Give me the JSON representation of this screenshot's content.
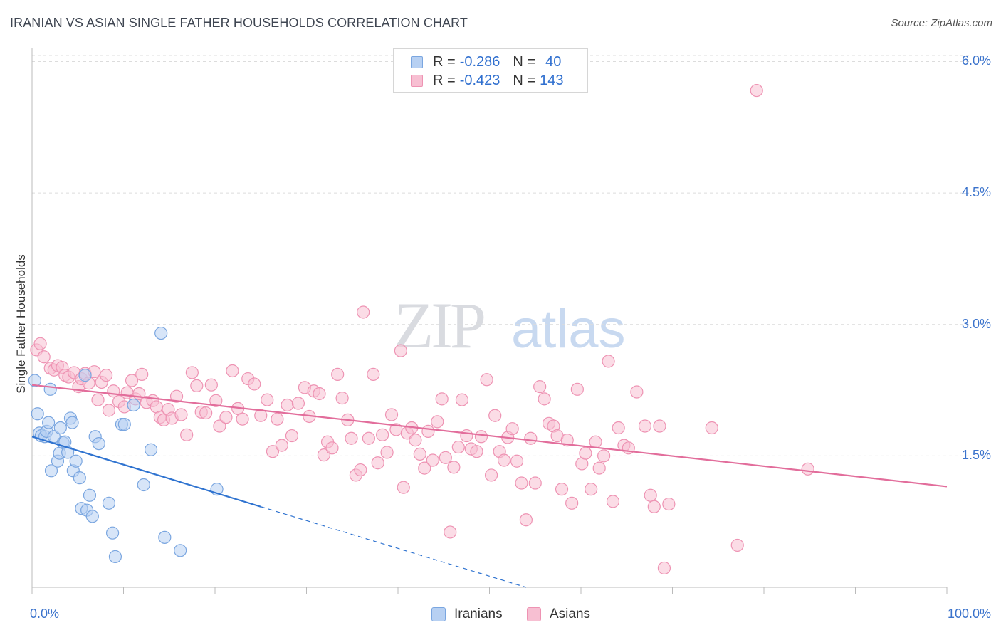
{
  "title": "IRANIAN VS ASIAN SINGLE FATHER HOUSEHOLDS CORRELATION CHART",
  "source": "Source: ZipAtlas.com",
  "watermark": {
    "zip": "ZIP",
    "atlas": "atlas"
  },
  "legend_top": {
    "rows": [
      {
        "r_label": "R = ",
        "r_value": "-0.286",
        "n_label": "N = ",
        "n_value": "40"
      },
      {
        "r_label": "R = ",
        "r_value": "-0.423",
        "n_label": "N = ",
        "n_value": "143"
      }
    ]
  },
  "colors": {
    "iranians_fill": "#b7d0f2",
    "iranians_stroke": "#7aa6e0",
    "iranians_line": "#2f73d0",
    "asians_fill": "#f7bfd2",
    "asians_stroke": "#ee93b3",
    "asians_line": "#e26d9b",
    "tick_label": "#3b73cc",
    "grid": "#dcdcdc"
  },
  "chart_data": {
    "type": "scatter",
    "xlabel": "",
    "ylabel": "Single Father Households",
    "xlim": [
      0,
      100
    ],
    "ylim": [
      0,
      6.15
    ],
    "x_tick_labels": [
      "0.0%",
      "100.0%"
    ],
    "y_ticks": [
      1.5,
      3.0,
      4.5,
      6.0
    ],
    "y_tick_labels": [
      "1.5%",
      "3.0%",
      "4.5%",
      "6.0%"
    ],
    "grid": true,
    "legend_position": "bottom-center",
    "series": [
      {
        "name": "Iranians",
        "trend": {
          "x": [
            0,
            25
          ],
          "y": [
            1.72,
            0.92
          ],
          "dashed_to": [
            54,
            0
          ]
        },
        "points": [
          [
            0.3,
            2.36
          ],
          [
            0.6,
            1.98
          ],
          [
            0.8,
            1.76
          ],
          [
            1.0,
            1.73
          ],
          [
            1.4,
            1.72
          ],
          [
            1.6,
            1.78
          ],
          [
            1.8,
            1.88
          ],
          [
            2.0,
            2.26
          ],
          [
            2.1,
            1.33
          ],
          [
            2.4,
            1.72
          ],
          [
            2.8,
            1.44
          ],
          [
            3.0,
            1.53
          ],
          [
            3.1,
            1.82
          ],
          [
            3.4,
            1.65
          ],
          [
            3.6,
            1.66
          ],
          [
            3.9,
            1.54
          ],
          [
            4.2,
            1.93
          ],
          [
            4.4,
            1.88
          ],
          [
            4.5,
            1.33
          ],
          [
            4.8,
            1.44
          ],
          [
            5.2,
            1.25
          ],
          [
            5.4,
            0.9
          ],
          [
            5.8,
            2.42
          ],
          [
            6.0,
            0.88
          ],
          [
            6.3,
            1.05
          ],
          [
            6.6,
            0.81
          ],
          [
            6.9,
            1.72
          ],
          [
            7.3,
            1.64
          ],
          [
            8.4,
            0.96
          ],
          [
            8.8,
            0.62
          ],
          [
            9.1,
            0.35
          ],
          [
            9.8,
            1.86
          ],
          [
            10.1,
            1.86
          ],
          [
            11.1,
            2.08
          ],
          [
            12.2,
            1.17
          ],
          [
            13.0,
            1.57
          ],
          [
            14.1,
            2.9
          ],
          [
            14.5,
            0.57
          ],
          [
            16.2,
            0.42
          ],
          [
            20.2,
            1.12
          ]
        ]
      },
      {
        "name": "Asians",
        "trend": {
          "x": [
            0,
            100
          ],
          "y": [
            2.31,
            1.15
          ]
        },
        "points": [
          [
            0.5,
            2.71
          ],
          [
            0.9,
            2.78
          ],
          [
            1.3,
            2.63
          ],
          [
            2.0,
            2.5
          ],
          [
            2.4,
            2.48
          ],
          [
            2.8,
            2.53
          ],
          [
            3.3,
            2.51
          ],
          [
            3.6,
            2.42
          ],
          [
            4.0,
            2.4
          ],
          [
            4.6,
            2.45
          ],
          [
            5.1,
            2.29
          ],
          [
            5.4,
            2.38
          ],
          [
            5.8,
            2.44
          ],
          [
            6.2,
            2.33
          ],
          [
            6.8,
            2.46
          ],
          [
            7.2,
            2.14
          ],
          [
            7.6,
            2.34
          ],
          [
            8.1,
            2.42
          ],
          [
            8.4,
            2.02
          ],
          [
            8.9,
            2.24
          ],
          [
            9.5,
            2.12
          ],
          [
            10.1,
            2.06
          ],
          [
            10.4,
            2.22
          ],
          [
            10.9,
            2.36
          ],
          [
            11.3,
            2.15
          ],
          [
            11.7,
            2.21
          ],
          [
            12.0,
            2.43
          ],
          [
            12.5,
            2.11
          ],
          [
            13.2,
            2.13
          ],
          [
            13.6,
            2.06
          ],
          [
            14.0,
            1.94
          ],
          [
            14.4,
            1.91
          ],
          [
            14.9,
            2.03
          ],
          [
            15.3,
            1.93
          ],
          [
            15.8,
            2.18
          ],
          [
            16.3,
            1.97
          ],
          [
            16.9,
            1.74
          ],
          [
            17.5,
            2.45
          ],
          [
            18.0,
            2.3
          ],
          [
            18.5,
            2.0
          ],
          [
            19.0,
            1.99
          ],
          [
            19.6,
            2.31
          ],
          [
            20.1,
            2.13
          ],
          [
            20.5,
            1.84
          ],
          [
            21.2,
            1.94
          ],
          [
            21.9,
            2.47
          ],
          [
            22.5,
            2.04
          ],
          [
            23.0,
            1.92
          ],
          [
            23.6,
            2.38
          ],
          [
            24.3,
            2.32
          ],
          [
            25.0,
            1.96
          ],
          [
            25.7,
            2.14
          ],
          [
            26.3,
            1.55
          ],
          [
            26.8,
            1.92
          ],
          [
            27.3,
            1.62
          ],
          [
            27.9,
            2.08
          ],
          [
            28.4,
            1.73
          ],
          [
            29.1,
            2.1
          ],
          [
            29.8,
            2.28
          ],
          [
            30.3,
            1.95
          ],
          [
            30.8,
            2.24
          ],
          [
            31.4,
            2.21
          ],
          [
            31.9,
            1.51
          ],
          [
            32.3,
            1.66
          ],
          [
            32.8,
            1.59
          ],
          [
            33.4,
            2.43
          ],
          [
            33.9,
            2.16
          ],
          [
            34.5,
            1.91
          ],
          [
            34.9,
            1.7
          ],
          [
            35.4,
            1.28
          ],
          [
            35.9,
            1.34
          ],
          [
            36.2,
            3.14
          ],
          [
            36.8,
            1.7
          ],
          [
            37.3,
            2.43
          ],
          [
            37.8,
            1.42
          ],
          [
            38.3,
            1.74
          ],
          [
            38.8,
            1.54
          ],
          [
            39.3,
            1.97
          ],
          [
            39.8,
            1.8
          ],
          [
            40.3,
            2.7
          ],
          [
            40.6,
            1.14
          ],
          [
            41.0,
            1.76
          ],
          [
            41.5,
            1.82
          ],
          [
            41.9,
            1.68
          ],
          [
            42.4,
            1.52
          ],
          [
            42.9,
            1.36
          ],
          [
            43.3,
            1.78
          ],
          [
            43.8,
            1.45
          ],
          [
            44.3,
            1.89
          ],
          [
            44.8,
            2.15
          ],
          [
            45.2,
            1.48
          ],
          [
            45.7,
            0.63
          ],
          [
            46.1,
            1.37
          ],
          [
            46.6,
            1.6
          ],
          [
            47.0,
            2.14
          ],
          [
            47.5,
            1.73
          ],
          [
            48.0,
            1.58
          ],
          [
            48.6,
            1.55
          ],
          [
            49.1,
            1.72
          ],
          [
            49.7,
            2.37
          ],
          [
            50.2,
            1.28
          ],
          [
            50.6,
            1.96
          ],
          [
            51.1,
            1.55
          ],
          [
            51.6,
            1.45
          ],
          [
            52.0,
            1.71
          ],
          [
            52.5,
            1.81
          ],
          [
            53.0,
            1.44
          ],
          [
            53.5,
            1.19
          ],
          [
            54.0,
            0.77
          ],
          [
            54.5,
            1.7
          ],
          [
            55.0,
            1.19
          ],
          [
            55.5,
            2.29
          ],
          [
            56.0,
            2.15
          ],
          [
            56.5,
            1.87
          ],
          [
            57.0,
            1.84
          ],
          [
            57.4,
            1.73
          ],
          [
            57.9,
            1.12
          ],
          [
            58.5,
            1.68
          ],
          [
            59.0,
            0.96
          ],
          [
            59.6,
            2.26
          ],
          [
            60.1,
            1.41
          ],
          [
            60.5,
            1.53
          ],
          [
            61.1,
            1.12
          ],
          [
            61.6,
            1.66
          ],
          [
            62.0,
            1.36
          ],
          [
            62.5,
            1.5
          ],
          [
            63.0,
            2.58
          ],
          [
            63.5,
            0.98
          ],
          [
            64.1,
            1.82
          ],
          [
            64.7,
            1.62
          ],
          [
            65.2,
            1.59
          ],
          [
            66.1,
            2.23
          ],
          [
            67.0,
            1.84
          ],
          [
            67.6,
            1.05
          ],
          [
            68.0,
            0.92
          ],
          [
            68.6,
            1.84
          ],
          [
            69.1,
            0.22
          ],
          [
            69.6,
            0.95
          ],
          [
            74.3,
            1.82
          ],
          [
            77.1,
            0.48
          ],
          [
            79.2,
            5.67
          ],
          [
            84.8,
            1.35
          ]
        ]
      }
    ]
  },
  "legend_bottom": [
    "Iranians",
    "Asians"
  ]
}
